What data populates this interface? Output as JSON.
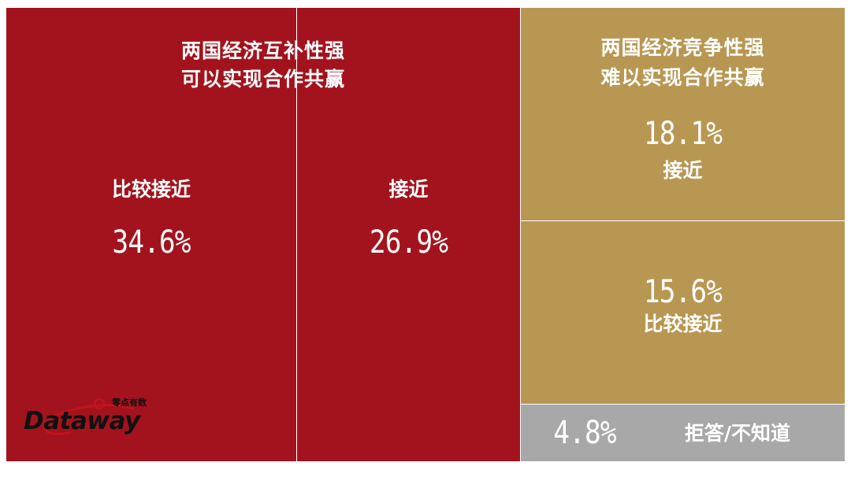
{
  "chart_data": {
    "type": "treemap",
    "groups": [
      {
        "title_line1": "两国经济互补性强",
        "title_line2": "可以实现合作共赢",
        "color": "#a3131d",
        "items": [
          {
            "label": "比较接近",
            "value": 34.6,
            "value_text": "34.6%"
          },
          {
            "label": "接近",
            "value": 26.9,
            "value_text": "26.9%"
          }
        ]
      },
      {
        "title_line1": "两国经济竞争性强",
        "title_line2": "难以实现合作共赢",
        "color": "#b89752",
        "items": [
          {
            "label": "接近",
            "value": 18.1,
            "value_text": "18.1%"
          },
          {
            "label": "比较接近",
            "value": 15.6,
            "value_text": "15.6%"
          }
        ]
      },
      {
        "color": "#a8a8a8",
        "items": [
          {
            "label": "拒答/不知道",
            "value": 4.8,
            "value_text": "4.8%"
          }
        ]
      }
    ]
  },
  "logo": {
    "wordmark": "Dataway",
    "chinese": "零点有数"
  }
}
